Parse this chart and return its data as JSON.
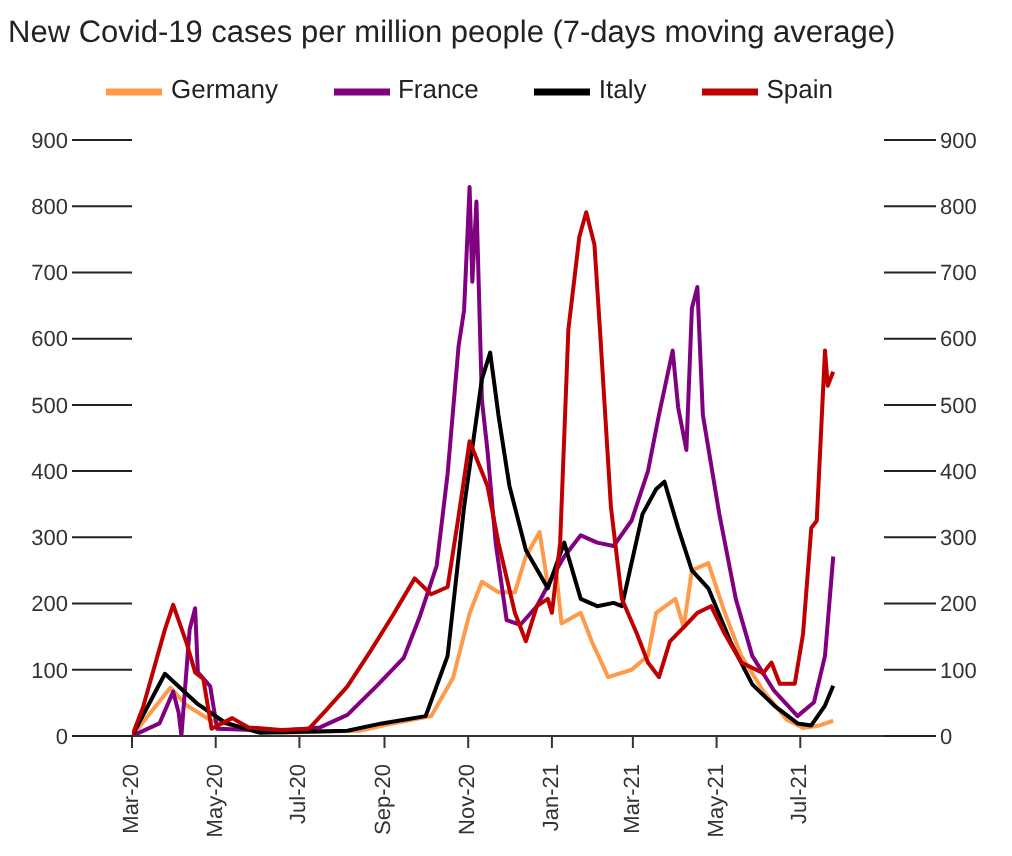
{
  "chart_data": {
    "type": "line",
    "title": "New Covid-19 cases per million people (7-days moving average)",
    "xlim": [
      "2020-03-01",
      "2021-08-31"
    ],
    "xticks": [
      {
        "value": "2020-03-01",
        "label": "Mar-20"
      },
      {
        "value": "2020-05-01",
        "label": "May-20"
      },
      {
        "value": "2020-07-01",
        "label": "Jul-20"
      },
      {
        "value": "2020-09-01",
        "label": "Sep-20"
      },
      {
        "value": "2020-11-01",
        "label": "Nov-20"
      },
      {
        "value": "2021-01-01",
        "label": "Jan-21"
      },
      {
        "value": "2021-03-01",
        "label": "Mar-21"
      },
      {
        "value": "2021-05-01",
        "label": "May-21"
      },
      {
        "value": "2021-07-01",
        "label": "Jul-21"
      }
    ],
    "ylim": [
      0,
      900
    ],
    "yticks": [
      0,
      100,
      200,
      300,
      400,
      500,
      600,
      700,
      800,
      900
    ],
    "y2lim": [
      0,
      900
    ],
    "y2ticks": [
      0,
      100,
      200,
      300,
      400,
      500,
      600,
      700,
      800,
      900
    ],
    "grid": false,
    "legend": "top",
    "marker": "none",
    "line_style": "solid",
    "series": [
      {
        "name": "Germany",
        "color": "#ff9a4a",
        "x": [
          "2020-03-01",
          "2020-03-29",
          "2020-04-10",
          "2020-04-27",
          "2020-05-17",
          "2020-06-18",
          "2020-08-14",
          "2020-09-07",
          "2020-10-05",
          "2020-10-21",
          "2020-11-02",
          "2020-11-11",
          "2020-11-23",
          "2020-12-05",
          "2020-12-13",
          "2020-12-23",
          "2020-12-29",
          "2021-01-04",
          "2021-01-08",
          "2021-01-22",
          "2021-01-30",
          "2021-02-11",
          "2021-02-28",
          "2021-03-12",
          "2021-03-18",
          "2021-04-01",
          "2021-04-07",
          "2021-04-13",
          "2021-04-25",
          "2021-05-07",
          "2021-05-19",
          "2021-06-04",
          "2021-06-21",
          "2021-07-03",
          "2021-07-15",
          "2021-07-25"
        ],
        "values": [
          0,
          73,
          46,
          24,
          14,
          5,
          8,
          19,
          30,
          88,
          185,
          233,
          217,
          217,
          271,
          308,
          228,
          250,
          170,
          186,
          143,
          89,
          100,
          121,
          186,
          207,
          164,
          250,
          261,
          186,
          121,
          68,
          25,
          12,
          16,
          23
        ]
      },
      {
        "name": "France",
        "color": "#800080",
        "x": [
          "2020-03-01",
          "2020-03-21",
          "2020-03-31",
          "2020-04-04",
          "2020-04-06",
          "2020-04-12",
          "2020-04-16",
          "2020-04-18",
          "2020-04-27",
          "2020-05-02",
          "2020-05-29",
          "2020-06-18",
          "2020-07-16",
          "2020-08-05",
          "2020-08-26",
          "2020-09-15",
          "2020-09-27",
          "2020-10-09",
          "2020-10-17",
          "2020-10-25",
          "2020-10-29",
          "2020-11-02",
          "2020-11-04",
          "2020-11-07",
          "2020-11-11",
          "2020-11-15",
          "2020-11-21",
          "2020-11-29",
          "2020-12-09",
          "2020-12-21",
          "2021-01-01",
          "2021-01-10",
          "2021-01-22",
          "2021-02-03",
          "2021-02-15",
          "2021-02-28",
          "2021-03-12",
          "2021-03-20",
          "2021-03-30",
          "2021-04-03",
          "2021-04-09",
          "2021-04-13",
          "2021-04-17",
          "2021-04-21",
          "2021-05-03",
          "2021-05-15",
          "2021-05-27",
          "2021-06-12",
          "2021-06-29",
          "2021-07-11",
          "2021-07-19",
          "2021-07-25"
        ],
        "values": [
          0,
          19,
          67,
          35,
          0,
          161,
          193,
          96,
          75,
          11,
          9,
          8,
          13,
          32,
          75,
          118,
          182,
          257,
          396,
          589,
          643,
          829,
          686,
          807,
          507,
          432,
          292,
          175,
          168,
          196,
          239,
          271,
          303,
          292,
          287,
          325,
          400,
          485,
          582,
          496,
          432,
          646,
          678,
          485,
          335,
          207,
          121,
          68,
          30,
          51,
          121,
          271
        ]
      },
      {
        "name": "Italy",
        "color": "#000000",
        "x": [
          "2020-03-01",
          "2020-03-25",
          "2020-04-18",
          "2020-05-08",
          "2020-06-02",
          "2020-08-05",
          "2020-08-30",
          "2020-10-01",
          "2020-10-17",
          "2020-10-29",
          "2020-11-11",
          "2020-11-17",
          "2020-11-23",
          "2020-12-01",
          "2020-12-13",
          "2020-12-29",
          "2021-01-10",
          "2021-01-22",
          "2021-02-03",
          "2021-02-15",
          "2021-02-21",
          "2021-03-08",
          "2021-03-18",
          "2021-03-24",
          "2021-04-03",
          "2021-04-13",
          "2021-04-25",
          "2021-05-11",
          "2021-05-27",
          "2021-06-12",
          "2021-06-29",
          "2021-07-09",
          "2021-07-19",
          "2021-07-25"
        ],
        "values": [
          0,
          94,
          48,
          20,
          5,
          8,
          19,
          30,
          121,
          346,
          539,
          579,
          485,
          378,
          281,
          223,
          292,
          207,
          196,
          201,
          196,
          335,
          373,
          384,
          314,
          250,
          223,
          143,
          78,
          46,
          19,
          16,
          46,
          76
        ]
      },
      {
        "name": "Spain",
        "color": "#c00000",
        "x": [
          "2020-03-01",
          "2020-03-09",
          "2020-03-25",
          "2020-03-31",
          "2020-04-10",
          "2020-04-16",
          "2020-04-22",
          "2020-04-28",
          "2020-05-13",
          "2020-05-25",
          "2020-06-18",
          "2020-07-08",
          "2020-07-20",
          "2020-08-05",
          "2020-08-22",
          "2020-09-07",
          "2020-09-23",
          "2020-10-05",
          "2020-10-17",
          "2020-10-25",
          "2020-11-02",
          "2020-11-15",
          "2020-11-23",
          "2020-12-05",
          "2020-12-13",
          "2020-12-21",
          "2020-12-29",
          "2021-01-01",
          "2021-01-07",
          "2021-01-13",
          "2021-01-21",
          "2021-01-26",
          "2021-02-01",
          "2021-02-05",
          "2021-02-13",
          "2021-02-21",
          "2021-03-04",
          "2021-03-12",
          "2021-03-20",
          "2021-03-28",
          "2021-04-07",
          "2021-04-17",
          "2021-04-27",
          "2021-05-07",
          "2021-05-19",
          "2021-06-04",
          "2021-06-10",
          "2021-06-16",
          "2021-06-27",
          "2021-07-03",
          "2021-07-09",
          "2021-07-13",
          "2021-07-19",
          "2021-07-21",
          "2021-07-25"
        ],
        "values": [
          0,
          43,
          161,
          198,
          139,
          96,
          86,
          11,
          27,
          13,
          9,
          11,
          38,
          75,
          129,
          182,
          238,
          214,
          225,
          332,
          445,
          378,
          292,
          186,
          143,
          196,
          207,
          186,
          292,
          614,
          754,
          791,
          742,
          614,
          346,
          207,
          154,
          111,
          89,
          143,
          164,
          186,
          196,
          154,
          111,
          95,
          111,
          79,
          79,
          154,
          314,
          325,
          582,
          529,
          550
        ]
      }
    ]
  }
}
